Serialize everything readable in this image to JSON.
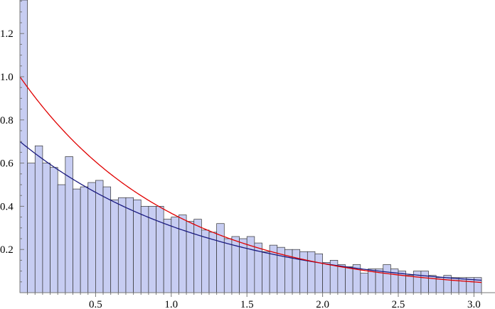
{
  "chart_data": {
    "type": "bar",
    "title": "",
    "xlabel": "",
    "ylabel": "",
    "xlim": [
      0,
      3.05
    ],
    "ylim": [
      0,
      1.37
    ],
    "x_ticks": [
      0.5,
      1.0,
      1.5,
      2.0,
      2.5,
      3.0
    ],
    "x_tick_labels": [
      "0.5",
      "1.0",
      "1.5",
      "2.0",
      "2.5",
      "3.0"
    ],
    "y_ticks": [
      0.2,
      0.4,
      0.6,
      0.8,
      1.0,
      1.2
    ],
    "y_tick_labels": [
      "0.2",
      "0.4",
      "0.6",
      "0.8",
      "1.0",
      "1.2"
    ],
    "bin_width": 0.05,
    "histogram": {
      "bin_starts": [
        0.0,
        0.05,
        0.1,
        0.15,
        0.2,
        0.25,
        0.3,
        0.35,
        0.4,
        0.45,
        0.5,
        0.55,
        0.6,
        0.65,
        0.7,
        0.75,
        0.8,
        0.85,
        0.9,
        0.95,
        1.0,
        1.05,
        1.1,
        1.15,
        1.2,
        1.25,
        1.3,
        1.35,
        1.4,
        1.45,
        1.5,
        1.55,
        1.6,
        1.65,
        1.7,
        1.75,
        1.8,
        1.85,
        1.9,
        1.95,
        2.0,
        2.05,
        2.1,
        2.15,
        2.2,
        2.25,
        2.3,
        2.35,
        2.4,
        2.45,
        2.5,
        2.55,
        2.6,
        2.65,
        2.7,
        2.75,
        2.8,
        2.85,
        2.9,
        2.95,
        3.0
      ],
      "values": [
        1.37,
        0.6,
        0.68,
        0.6,
        0.58,
        0.5,
        0.63,
        0.48,
        0.49,
        0.51,
        0.52,
        0.49,
        0.43,
        0.44,
        0.44,
        0.43,
        0.4,
        0.4,
        0.4,
        0.34,
        0.35,
        0.36,
        0.33,
        0.34,
        0.29,
        0.28,
        0.32,
        0.25,
        0.26,
        0.25,
        0.26,
        0.23,
        0.19,
        0.22,
        0.21,
        0.2,
        0.2,
        0.19,
        0.19,
        0.18,
        0.14,
        0.15,
        0.13,
        0.12,
        0.13,
        0.09,
        0.11,
        0.11,
        0.13,
        0.11,
        0.1,
        0.08,
        0.1,
        0.1,
        0.08,
        0.07,
        0.08,
        0.07,
        0.07,
        0.07,
        0.07
      ]
    },
    "series": [
      {
        "type": "line",
        "color": "#1a1a80",
        "curve": "0.7*exp(-0.82*x)"
      },
      {
        "type": "line",
        "color": "#e00000",
        "curve": "exp(-x)"
      }
    ],
    "grid": false,
    "legend": "none",
    "bar_fill": "#c7cdf2"
  }
}
